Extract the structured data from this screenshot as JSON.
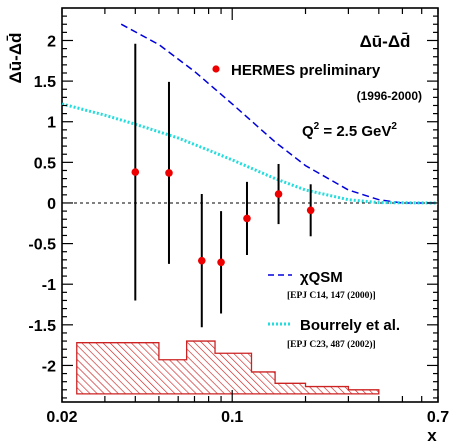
{
  "chart_data": {
    "type": "scatter",
    "title": "Δū-Δd̄",
    "ylabel": "Δū-Δd̄",
    "xlabel": "x",
    "x_scale": "log",
    "xlim": [
      0.02,
      0.7
    ],
    "ylim": [
      -2.45,
      2.4
    ],
    "x_tick_labels": [
      {
        "value": 0.02,
        "label": "0.02"
      },
      {
        "value": 0.1,
        "label": "0.1"
      },
      {
        "value": 0.7,
        "label": "0.7"
      }
    ],
    "y_tick_labels": [
      {
        "value": 2,
        "label": "2"
      },
      {
        "value": 1.5,
        "label": "1.5"
      },
      {
        "value": 1,
        "label": "1"
      },
      {
        "value": 0.5,
        "label": "0.5"
      },
      {
        "value": 0,
        "label": "0"
      },
      {
        "value": -0.5,
        "label": "-0.5"
      },
      {
        "value": -1,
        "label": "-1"
      },
      {
        "value": -1.5,
        "label": "-1.5"
      },
      {
        "value": -2,
        "label": "-2"
      }
    ],
    "annotation": "Q² = 2.5 GeV²",
    "annotation_base": "Q",
    "annotation_sup": "2",
    "annotation_mid": " = 2.5 GeV",
    "annotation_sup2": "2",
    "series": [
      {
        "name": "HERMES preliminary",
        "subtitle": "(1996-2000)",
        "kind": "points",
        "color": "#ee0000",
        "points": [
          {
            "x": 0.04,
            "y": 0.38,
            "err": 1.58
          },
          {
            "x": 0.055,
            "y": 0.37,
            "err": 1.12
          },
          {
            "x": 0.075,
            "y": -0.71,
            "err": 0.82
          },
          {
            "x": 0.09,
            "y": -0.73,
            "err": 0.63
          },
          {
            "x": 0.115,
            "y": -0.19,
            "err": 0.45
          },
          {
            "x": 0.155,
            "y": 0.11,
            "err": 0.37
          },
          {
            "x": 0.21,
            "y": -0.09,
            "err": 0.32
          }
        ]
      },
      {
        "name": "χQSM",
        "reference": "[EPJ C14, 147 (2000)]",
        "kind": "line",
        "style": "dashed",
        "color": "#0000dd",
        "points": [
          {
            "x": 0.035,
            "y": 2.2
          },
          {
            "x": 0.05,
            "y": 1.95
          },
          {
            "x": 0.07,
            "y": 1.62
          },
          {
            "x": 0.1,
            "y": 1.22
          },
          {
            "x": 0.15,
            "y": 0.75
          },
          {
            "x": 0.2,
            "y": 0.46
          },
          {
            "x": 0.3,
            "y": 0.16
          },
          {
            "x": 0.4,
            "y": 0.04
          },
          {
            "x": 0.5,
            "y": 0.0
          },
          {
            "x": 0.7,
            "y": 0.0
          }
        ]
      },
      {
        "name": "Bourrely et al.",
        "reference": "[EPJ C23, 487 (2002)]",
        "kind": "line",
        "style": "dotted",
        "color": "#22dddd",
        "points": [
          {
            "x": 0.02,
            "y": 1.22
          },
          {
            "x": 0.03,
            "y": 1.08
          },
          {
            "x": 0.04,
            "y": 0.97
          },
          {
            "x": 0.06,
            "y": 0.8
          },
          {
            "x": 0.08,
            "y": 0.65
          },
          {
            "x": 0.1,
            "y": 0.53
          },
          {
            "x": 0.15,
            "y": 0.3
          },
          {
            "x": 0.2,
            "y": 0.16
          },
          {
            "x": 0.3,
            "y": 0.04
          },
          {
            "x": 0.4,
            "y": 0.005
          },
          {
            "x": 0.7,
            "y": 0.0
          }
        ]
      }
    ],
    "systematic_band": {
      "color": "#cc2222",
      "fill": "#f3c8c8",
      "baseline": -2.35,
      "bins": [
        {
          "x0": 0.023,
          "x1": 0.05,
          "top": -1.72
        },
        {
          "x0": 0.05,
          "x1": 0.065,
          "top": -1.93
        },
        {
          "x0": 0.065,
          "x1": 0.085,
          "top": -1.7
        },
        {
          "x0": 0.085,
          "x1": 0.12,
          "top": -1.85
        },
        {
          "x0": 0.12,
          "x1": 0.15,
          "top": -2.08
        },
        {
          "x0": 0.15,
          "x1": 0.2,
          "top": -2.22
        },
        {
          "x0": 0.2,
          "x1": 0.3,
          "top": -2.26
        },
        {
          "x0": 0.3,
          "x1": 0.4,
          "top": -2.3
        }
      ]
    }
  }
}
